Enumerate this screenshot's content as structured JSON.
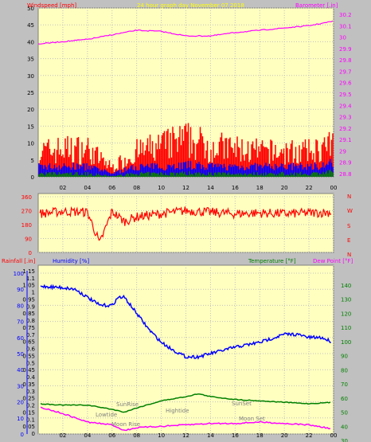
{
  "header": {
    "wind_label": "Windspeed [mph]",
    "center_title": "24 hour graph day  November 07 2018",
    "baro_label": "Barometer [.in]"
  },
  "lower_header": {
    "rain_label": "Rainfall [.in]",
    "humidity_label": "Humidity [%]",
    "temp_label": "Temperature [°F]",
    "dew_label": "Dew Point [°F]"
  },
  "compass": [
    "N",
    "W",
    "S",
    "E",
    "N"
  ],
  "annotations": {
    "sunrise": "SunRise",
    "lowtide": "Lowtide",
    "moonrise": "Moon Rise",
    "hightide": "Hightide",
    "sunset": "SunSet",
    "moonset": "Moon Set"
  },
  "colors": {
    "bg": "#c0c0c0",
    "plot": "#ffffc0",
    "wind": "#ff0000",
    "avg_wind": "#0000ff",
    "low_wind": "#008000",
    "barometer": "#ff00ff",
    "humidity": "#0000ff",
    "temperature": "#008000",
    "dewpoint": "#ff00ff"
  },
  "chart_data": [
    {
      "type": "line",
      "panel": "wind-barometer",
      "x_ticks": [
        "02",
        "04",
        "06",
        "08",
        "10",
        "12",
        "14",
        "16",
        "18",
        "20",
        "22",
        "00"
      ],
      "y_left_ticks": [
        0,
        5,
        10,
        15,
        20,
        25,
        30,
        35,
        40,
        45,
        50
      ],
      "y_left_range": [
        0,
        50
      ],
      "y_right_ticks": [
        "28.8",
        "28.9",
        "29",
        "29.1",
        "29.2",
        "29.3",
        "29.4",
        "29.5",
        "29.6",
        "29.7",
        "29.8",
        "29.9",
        "30",
        "30.1",
        "30.2"
      ],
      "y_right_range": [
        28.8,
        30.2
      ],
      "series": [
        {
          "role": "barometer",
          "hours": [
            0,
            2,
            4,
            6,
            8,
            10,
            12,
            14,
            16,
            18,
            20,
            22,
            24
          ],
          "values": [
            29.94,
            29.96,
            29.98,
            30.02,
            30.06,
            30.05,
            30.01,
            30.01,
            30.04,
            30.06,
            30.08,
            30.1,
            30.14
          ]
        }
      ],
      "wind_band": {
        "hours": [
          0,
          2,
          4,
          6,
          8,
          10,
          12,
          14,
          16,
          18,
          20,
          22,
          24
        ],
        "gust": [
          8,
          9,
          9,
          3,
          8,
          10,
          12,
          10,
          9,
          8,
          8,
          8,
          10
        ],
        "avg": [
          3,
          3,
          3,
          1,
          3,
          3,
          3.5,
          3,
          3,
          3,
          3,
          3,
          4
        ],
        "low": [
          1,
          1,
          1,
          0.2,
          1,
          1,
          1.2,
          1,
          1,
          1,
          1,
          1,
          1.5
        ]
      }
    },
    {
      "type": "line",
      "panel": "direction",
      "x_ticks": [
        "02",
        "04",
        "06",
        "08",
        "10",
        "12",
        "14",
        "16",
        "18",
        "20",
        "22",
        "00"
      ],
      "y_ticks": [
        0,
        90,
        180,
        270,
        360
      ],
      "y_range": [
        0,
        360
      ],
      "series": [
        {
          "role": "direction",
          "hours": [
            0,
            2,
            4,
            5,
            6,
            7,
            8,
            10,
            12,
            14,
            16,
            18,
            20,
            22,
            24
          ],
          "values": [
            250,
            265,
            260,
            60,
            265,
            200,
            230,
            250,
            270,
            260,
            250,
            255,
            250,
            255,
            260
          ]
        }
      ]
    },
    {
      "type": "line",
      "panel": "humidity-temperature",
      "x_ticks": [
        "02",
        "04",
        "06",
        "08",
        "10",
        "12",
        "14",
        "16",
        "18",
        "20",
        "22",
        "00"
      ],
      "y_rain_ticks": [
        "0",
        "0.05",
        "0.1",
        "0.15",
        "0.2",
        "0.25",
        "0.3",
        "0.35",
        "0.4",
        "0.45",
        "0.5",
        "0.55",
        "0.6",
        "0.65",
        "0.7",
        "0.75",
        "0.8",
        "0.85",
        "0.9",
        "0.95",
        "1",
        "1.05",
        "1.1",
        "1.15"
      ],
      "y_humidity_ticks": [
        0,
        10,
        20,
        30,
        40,
        50,
        60,
        70,
        80,
        90,
        100
      ],
      "y_temp_ticks": [
        30,
        40,
        50,
        60,
        70,
        80,
        90,
        100,
        110,
        120,
        130,
        140
      ],
      "y_temp_range": [
        30,
        145
      ],
      "series": [
        {
          "role": "humidity",
          "hours": [
            0,
            2,
            3,
            4,
            5,
            6,
            6.5,
            7,
            8,
            9,
            10,
            11,
            12,
            13,
            14,
            16,
            18,
            20,
            21,
            22,
            23,
            24
          ],
          "values": [
            92,
            91,
            90,
            85,
            80,
            80,
            85,
            85,
            75,
            65,
            57,
            52,
            48,
            48,
            50,
            54,
            57,
            62,
            62,
            60,
            60,
            57
          ]
        },
        {
          "role": "temperature",
          "hours": [
            0,
            2,
            4,
            6,
            7,
            8,
            10,
            12,
            13,
            14,
            16,
            18,
            20,
            22,
            24
          ],
          "values": [
            56,
            55,
            55,
            52,
            50,
            53,
            58,
            61,
            63,
            61,
            59,
            58,
            57,
            56,
            57
          ]
        },
        {
          "role": "dewpoint",
          "hours": [
            0,
            2,
            4,
            6,
            7,
            8,
            10,
            12,
            14,
            16,
            18,
            20,
            22,
            24
          ],
          "values": [
            54,
            49,
            43,
            41,
            37,
            39,
            40,
            41,
            42,
            42,
            43,
            42,
            41,
            38
          ]
        }
      ]
    }
  ]
}
